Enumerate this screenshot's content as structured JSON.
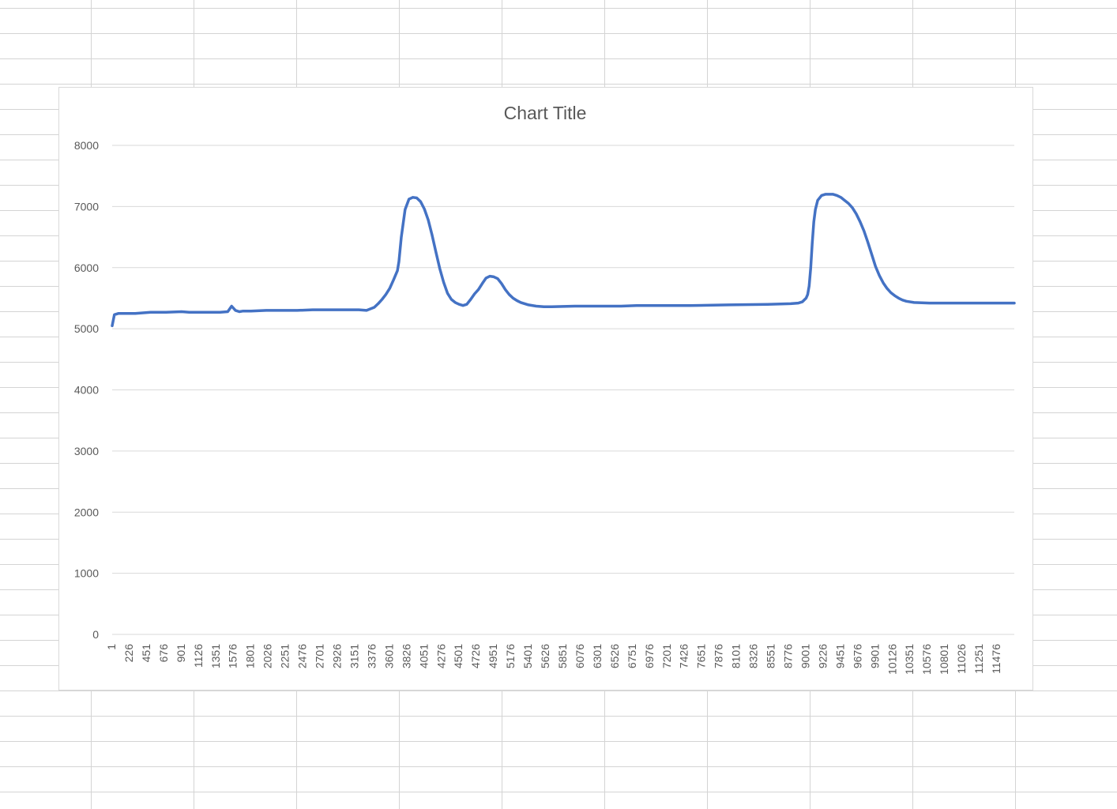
{
  "chart_data": {
    "type": "line",
    "title": "Chart Title",
    "xlabel": "",
    "ylabel": "",
    "ylim": [
      0,
      8000
    ],
    "y_ticks": [
      "0",
      "1000",
      "2000",
      "3000",
      "4000",
      "5000",
      "6000",
      "7000",
      "8000"
    ],
    "x_tick_labels": [
      "1",
      "226",
      "451",
      "676",
      "901",
      "1126",
      "1351",
      "1576",
      "1801",
      "2026",
      "2251",
      "2476",
      "2701",
      "2926",
      "3151",
      "3376",
      "3601",
      "3826",
      "4051",
      "4276",
      "4501",
      "4726",
      "4951",
      "5176",
      "5401",
      "5626",
      "5851",
      "6076",
      "6301",
      "6526",
      "6751",
      "6976",
      "7201",
      "7426",
      "7651",
      "7876",
      "8101",
      "8326",
      "8551",
      "8776",
      "9001",
      "9226",
      "9451",
      "9676",
      "9901",
      "10126",
      "10351",
      "10576",
      "10801",
      "11026",
      "11251",
      "11476"
    ],
    "xlim": [
      1,
      11700
    ],
    "grid": true,
    "legend": "none",
    "series": [
      {
        "color": "#4472c4",
        "x": [
          1,
          30,
          80,
          150,
          300,
          500,
          700,
          900,
          1000,
          1200,
          1400,
          1500,
          1550,
          1600,
          1650,
          1700,
          1800,
          2000,
          2200,
          2400,
          2600,
          2800,
          3000,
          3200,
          3300,
          3400,
          3450,
          3500,
          3550,
          3600,
          3650,
          3700,
          3720,
          3750,
          3800,
          3850,
          3900,
          3950,
          4000,
          4050,
          4100,
          4150,
          4200,
          4250,
          4300,
          4350,
          4400,
          4450,
          4500,
          4550,
          4600,
          4650,
          4700,
          4750,
          4800,
          4850,
          4900,
          4950,
          5000,
          5050,
          5100,
          5150,
          5200,
          5250,
          5300,
          5400,
          5500,
          5600,
          5700,
          6000,
          6300,
          6600,
          6800,
          7000,
          7500,
          8000,
          8500,
          8800,
          8900,
          8950,
          9000,
          9020,
          9040,
          9060,
          9080,
          9100,
          9120,
          9150,
          9200,
          9250,
          9300,
          9350,
          9400,
          9450,
          9500,
          9550,
          9600,
          9650,
          9700,
          9750,
          9800,
          9850,
          9900,
          9950,
          10000,
          10050,
          10100,
          10150,
          10200,
          10250,
          10300,
          10400,
          10600,
          11000,
          11500,
          11700
        ],
        "y": [
          5050,
          5230,
          5250,
          5250,
          5250,
          5270,
          5270,
          5280,
          5270,
          5270,
          5270,
          5280,
          5370,
          5300,
          5280,
          5290,
          5290,
          5300,
          5300,
          5300,
          5310,
          5310,
          5310,
          5310,
          5300,
          5350,
          5410,
          5480,
          5560,
          5660,
          5800,
          5950,
          6100,
          6500,
          6950,
          7120,
          7150,
          7140,
          7080,
          6960,
          6780,
          6530,
          6250,
          5980,
          5760,
          5580,
          5480,
          5430,
          5400,
          5380,
          5400,
          5480,
          5570,
          5640,
          5740,
          5830,
          5860,
          5850,
          5820,
          5740,
          5640,
          5560,
          5500,
          5460,
          5430,
          5390,
          5370,
          5360,
          5360,
          5370,
          5370,
          5370,
          5380,
          5380,
          5380,
          5390,
          5400,
          5410,
          5420,
          5440,
          5500,
          5560,
          5700,
          6000,
          6400,
          6750,
          6950,
          7100,
          7180,
          7200,
          7200,
          7200,
          7180,
          7150,
          7100,
          7050,
          6980,
          6880,
          6750,
          6600,
          6420,
          6220,
          6020,
          5870,
          5750,
          5660,
          5590,
          5540,
          5500,
          5470,
          5450,
          5430,
          5420,
          5420,
          5420,
          5420
        ]
      }
    ]
  }
}
